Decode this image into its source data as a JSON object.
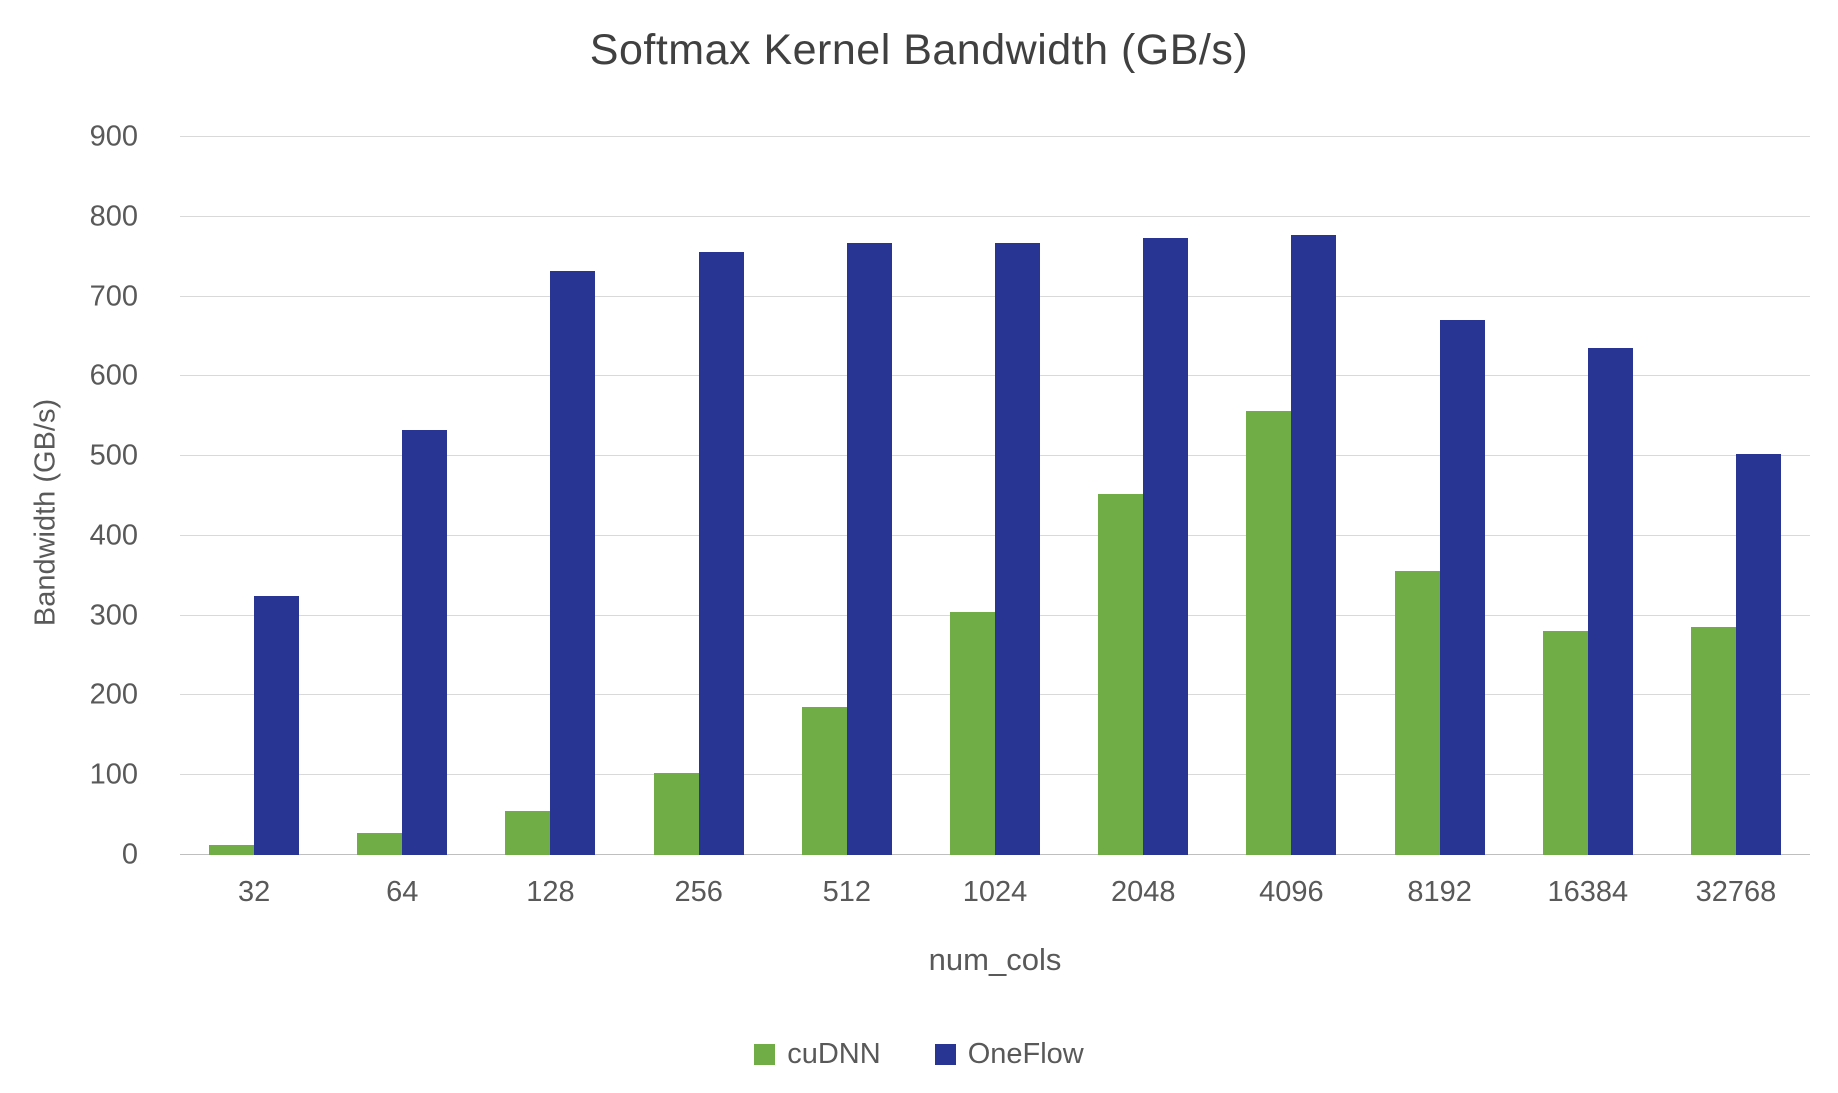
{
  "chart_data": {
    "type": "bar",
    "title": "Softmax Kernel Bandwidth (GB/s)",
    "xlabel": "num_cols",
    "ylabel": "Bandwidth (GB/s)",
    "ylim": [
      0,
      900
    ],
    "ytick_step": 100,
    "grid": true,
    "legend_position": "bottom",
    "categories": [
      "32",
      "64",
      "128",
      "256",
      "512",
      "1024",
      "2048",
      "4096",
      "8192",
      "16384",
      "32768"
    ],
    "series": [
      {
        "name": "cuDNN",
        "color": "#70AD47",
        "values": [
          13,
          27,
          55,
          103,
          185,
          305,
          452,
          556,
          356,
          281,
          286
        ]
      },
      {
        "name": "OneFlow",
        "color": "#283593",
        "values": [
          325,
          533,
          732,
          756,
          767,
          767,
          773,
          777,
          671,
          636,
          503
        ]
      }
    ]
  }
}
